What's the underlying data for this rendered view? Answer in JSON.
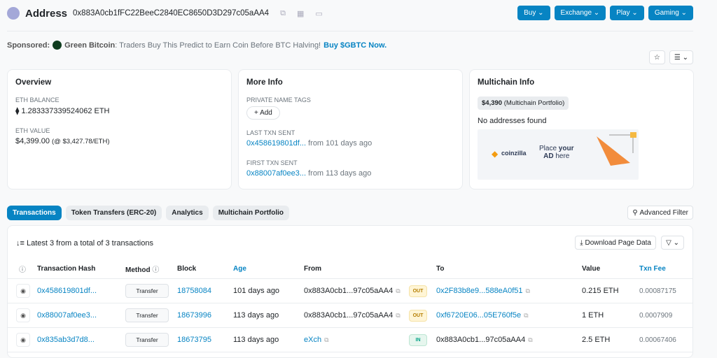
{
  "header": {
    "title": "Address",
    "address": "0x883A0cb1fFC22BeeC2840EC8650D3D297c05aAA4"
  },
  "top_buttons": [
    "Buy",
    "Exchange",
    "Play",
    "Gaming"
  ],
  "sponsored": {
    "label": "Sponsored:",
    "name": "Green Bitcoin",
    "text": ": Traders Buy This Predict to Earn Coin Before BTC Halving!",
    "cta": "Buy $GBTC Now."
  },
  "overview": {
    "title": "Overview",
    "eth_balance_label": "ETH BALANCE",
    "eth_balance": "1.283337339524062 ETH",
    "eth_value_label": "ETH VALUE",
    "eth_value": "$4,399.00",
    "eth_price": "(@ $3,427.78/ETH)"
  },
  "more_info": {
    "title": "More Info",
    "tags_label": "PRIVATE NAME TAGS",
    "add_label": "+ Add",
    "last_label": "LAST TXN SENT",
    "last_hash": "0x458619801df...",
    "last_age": "from 101 days ago",
    "first_label": "FIRST TXN SENT",
    "first_hash": "0x88007af0ee3...",
    "first_age": "from 113 days ago"
  },
  "multichain": {
    "title": "Multichain Info",
    "portfolio_value": "$4,390",
    "portfolio_label": "(Multichain Portfolio)",
    "no_addresses": "No addresses found",
    "ad_brand": "coinzilla",
    "ad_text1": "Place ",
    "ad_text2": "your",
    "ad_text3": "AD",
    "ad_text4": " here"
  },
  "tabs": [
    {
      "label": "Transactions",
      "active": true
    },
    {
      "label": "Token Transfers (ERC-20)"
    },
    {
      "label": "Analytics"
    },
    {
      "label": "Multichain Portfolio"
    }
  ],
  "advanced_filter": "Advanced Filter",
  "table": {
    "summary": "Latest 3 from a total of 3 transactions",
    "download": "Download Page Data",
    "columns": [
      "Transaction Hash",
      "Method",
      "Block",
      "Age",
      "From",
      "To",
      "Value",
      "Txn Fee"
    ],
    "rows": [
      {
        "hash": "0x458619801df...",
        "method": "Transfer",
        "block": "18758084",
        "age": "101 days ago",
        "from": "0x883A0cb1...97c05aAA4",
        "dir": "OUT",
        "to": "0x2F83b8e9...588eA0f51",
        "value": "0.215 ETH",
        "fee": "0.00087175"
      },
      {
        "hash": "0x88007af0ee3...",
        "method": "Transfer",
        "block": "18673996",
        "age": "113 days ago",
        "from": "0x883A0cb1...97c05aAA4",
        "dir": "OUT",
        "to": "0xf6720E06...05E760f5e",
        "value": "1 ETH",
        "fee": "0.0007909"
      },
      {
        "hash": "0x835ab3d7d8...",
        "method": "Transfer",
        "block": "18673795",
        "age": "113 days ago",
        "from": "eXch",
        "dir": "IN",
        "to": "0x883A0cb1...97c05aAA4",
        "value": "2.5 ETH",
        "fee": "0.00067406"
      }
    ]
  }
}
